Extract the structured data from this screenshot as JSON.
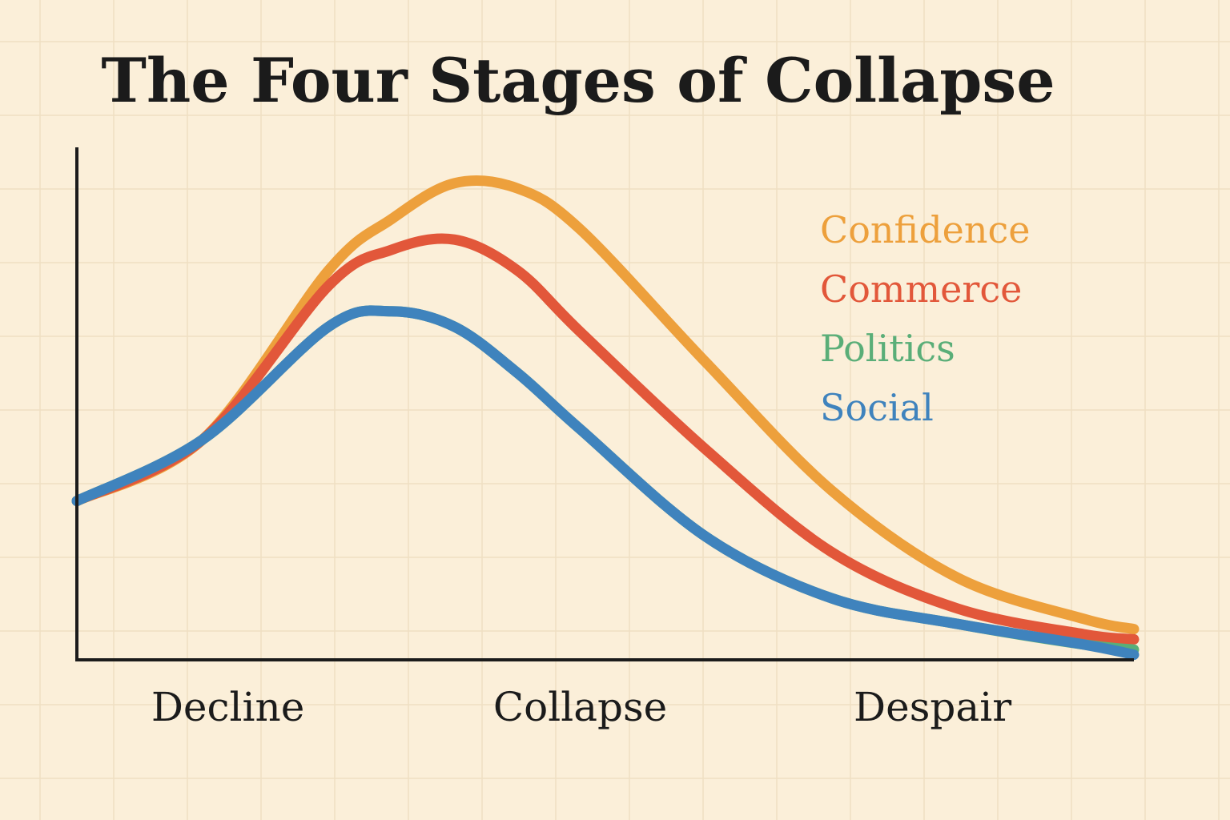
{
  "chart_data": {
    "type": "line",
    "title": "The Four Stages of Collapse",
    "xlabel": "",
    "ylabel": "",
    "x_ticks": [
      {
        "label": "Decline",
        "x": 1.2
      },
      {
        "label": "Collapse",
        "x": 4.0
      },
      {
        "label": "Despair",
        "x": 6.8
      }
    ],
    "xlim": [
      0,
      8.4
    ],
    "ylim": [
      0,
      100
    ],
    "grid": true,
    "legend_placement": "top-right",
    "x": [
      0,
      1.0,
      2.0,
      2.5,
      3.0,
      3.5,
      4.0,
      5.0,
      6.0,
      7.0,
      8.0,
      8.4
    ],
    "series": [
      {
        "name": "Confidence",
        "color": "#eda03c",
        "values": [
          31,
          43,
          76,
          86,
          93,
          92,
          84,
          58,
          33,
          16,
          8,
          6
        ]
      },
      {
        "name": "Commerce",
        "color": "#e2573a",
        "values": [
          31,
          43,
          73,
          80,
          82,
          76,
          64,
          41,
          21,
          10,
          5,
          4
        ]
      },
      {
        "name": "Politics",
        "color": "#5aae78",
        "values": [
          31,
          43,
          65,
          68,
          65,
          56,
          45,
          24,
          12,
          7,
          3,
          2
        ]
      },
      {
        "name": "Social",
        "color": "#3f83bd",
        "values": [
          31,
          43,
          65,
          68,
          65,
          56,
          45,
          24,
          12,
          7,
          3,
          1
        ]
      }
    ]
  }
}
